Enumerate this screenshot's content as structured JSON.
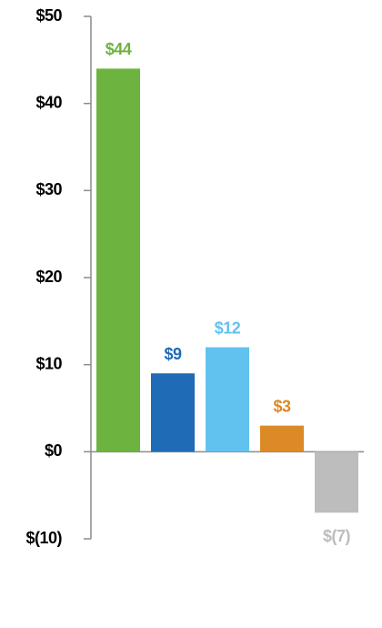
{
  "chart_data": {
    "type": "bar",
    "categories": [
      null,
      null,
      null,
      null,
      null
    ],
    "values": [
      44,
      9,
      12,
      3,
      -7
    ],
    "value_labels": [
      "$44",
      "$9",
      "$12",
      "$3",
      "$(7)"
    ],
    "colors": [
      "#6db33f",
      "#1f6bb5",
      "#62c2ef",
      "#dc8a27",
      "#bdbdbd"
    ],
    "ylim": [
      -10,
      50
    ],
    "yticks": [
      {
        "value": -10,
        "label": "$(10)"
      },
      {
        "value": 0,
        "label": "$0"
      },
      {
        "value": 10,
        "label": "$10"
      },
      {
        "value": 20,
        "label": "$20"
      },
      {
        "value": 30,
        "label": "$30"
      },
      {
        "value": 40,
        "label": "$40"
      },
      {
        "value": 50,
        "label": "$50"
      }
    ]
  }
}
